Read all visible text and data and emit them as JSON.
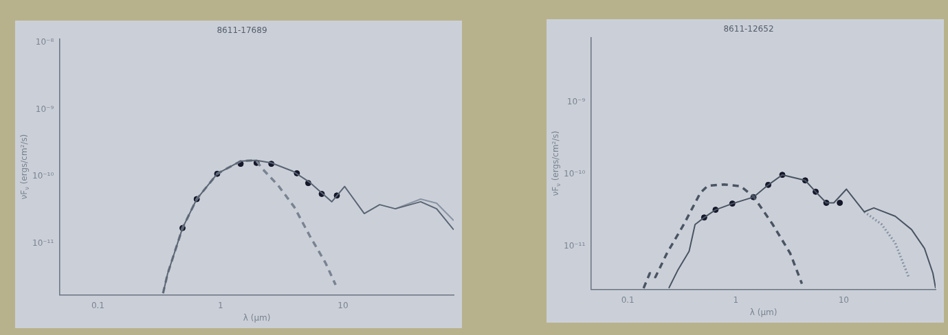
{
  "chart_data": [
    {
      "type": "line",
      "title": "8611-17689",
      "xlabel": "λ (μm)",
      "ylabel": "νF$_{ν}$ (ergs/cm²/s)",
      "log": "xy",
      "grid": false,
      "xlim": [
        0.049,
        80
      ],
      "xticks": [
        0.1,
        1,
        10
      ],
      "ylim": [
        1.7e-12,
        1.15e-08
      ],
      "yticks": [
        {
          "value": 1e-08,
          "label": "10⁻⁸"
        },
        {
          "value": 1e-09,
          "label": "10⁻⁹"
        },
        {
          "value": 1e-10,
          "label": "10⁻¹⁰"
        },
        {
          "value": 1e-11,
          "label": "10⁻¹¹"
        }
      ],
      "series": [
        {
          "type": "line",
          "line_style": "solid",
          "marker": "none",
          "color": "#5a6473",
          "x": [
            0.34,
            0.37,
            0.49,
            0.64,
            0.94,
            1.46,
            1.95,
            2.6,
            3.9,
            5.3,
            8.1,
            10.3,
            14.9,
            19.9,
            26.7,
            43,
            58,
            80
          ],
          "values": [
            1.8e-12,
            3.5e-12,
            1.7e-11,
            4.6e-11,
            1.1e-10,
            1.7e-10,
            1.75e-10,
            1.6e-10,
            1.2e-10,
            8.3e-11,
            4.2e-11,
            7.1e-11,
            2.8e-11,
            3.8e-11,
            3.3e-11,
            4.2e-11,
            3.3e-11,
            1.6e-11
          ]
        },
        {
          "type": "line",
          "line_style": "solid",
          "marker": "none",
          "color": "#8a93a3",
          "x": [
            26.7,
            43,
            58,
            80
          ],
          "values": [
            3.3e-11,
            4.6e-11,
            4e-11,
            2.2e-11
          ]
        },
        {
          "type": "line",
          "line_style": "dashed",
          "marker": "none",
          "color": "#7a8391",
          "x": [
            0.34,
            0.37,
            0.49,
            0.64,
            0.94,
            1.46,
            1.95,
            2.2,
            2.95,
            4.0,
            5.35,
            7.2,
            8.7
          ],
          "values": [
            1.8e-12,
            3.5e-12,
            1.7e-11,
            4.6e-11,
            1.1e-10,
            1.7e-10,
            1.75e-10,
            1.3e-10,
            7.4e-11,
            3.5e-11,
            1.3e-11,
            5.1e-12,
            2.4e-12
          ]
        },
        {
          "type": "scatter",
          "marker": "circle",
          "color": "#15172a",
          "x": [
            0.49,
            0.64,
            0.94,
            1.46,
            1.97,
            2.6,
            4.2,
            5.2,
            6.7,
            8.9
          ],
          "values": [
            1.7e-11,
            4.6e-11,
            1.1e-10,
            1.55e-10,
            1.6e-10,
            1.55e-10,
            1.12e-10,
            8e-11,
            5.5e-11,
            5.2e-11
          ]
        }
      ]
    },
    {
      "type": "line",
      "title": "8611-12652",
      "xlabel": "λ (μm)",
      "ylabel": "νF$_{ν}$ (ergs/cm²/s)",
      "log": "xy",
      "grid": false,
      "xlim": [
        0.046,
        71
      ],
      "xticks": [
        0.1,
        1,
        10
      ],
      "ylim": [
        2.5e-12,
        8e-09
      ],
      "yticks": [
        {
          "value": 1e-09,
          "label": "10⁻⁹"
        },
        {
          "value": 1e-10,
          "label": "10⁻¹⁰"
        },
        {
          "value": 1e-11,
          "label": "10⁻¹¹"
        }
      ],
      "series": [
        {
          "type": "line",
          "line_style": "solid",
          "marker": "none",
          "color": "#4a5462",
          "x": [
            0.24,
            0.29,
            0.37,
            0.42,
            0.51,
            0.65,
            0.93,
            1.46,
            2.0,
            2.7,
            4.4,
            5.5,
            6.9,
            8.1,
            10.6,
            15.5,
            19,
            30,
            42.5,
            56,
            67,
            71
          ],
          "values": [
            2.6e-12,
            4.6e-12,
            8.5e-12,
            2e-11,
            2.5e-11,
            3.2e-11,
            3.9e-11,
            4.8e-11,
            7.1e-11,
            9.8e-11,
            8.2e-11,
            5.7e-11,
            4e-11,
            4e-11,
            6.2e-11,
            3e-11,
            3.4e-11,
            2.6e-11,
            1.7e-11,
            9.3e-12,
            4.2e-12,
            2.6e-12
          ]
        },
        {
          "type": "line",
          "line_style": "dotted",
          "marker": "none",
          "color": "#8a93a3",
          "x": [
            15.5,
            22.5,
            30,
            40
          ],
          "values": [
            3e-11,
            2e-11,
            1.1e-11,
            3.7e-12
          ]
        },
        {
          "type": "line",
          "line_style": "dashed",
          "marker": "none",
          "color": "#4a5462",
          "x": [
            0.14,
            0.16,
            0.18,
            0.23,
            0.33,
            0.47,
            0.55,
            0.78,
            1.11,
            1.46,
            2.2,
            3.2,
            4.1
          ],
          "values": [
            2.6e-12,
            4.2e-12,
            3.7e-12,
            7.9e-12,
            2e-11,
            5.5e-11,
            6.9e-11,
            7.2e-11,
            6.8e-11,
            4.9e-11,
            2e-11,
            7.9e-12,
            3e-12
          ]
        },
        {
          "type": "scatter",
          "marker": "circle",
          "color": "#15172a",
          "x": [
            0.51,
            0.65,
            0.93,
            1.46,
            2.0,
            2.7,
            4.4,
            5.5,
            6.9,
            9.2
          ],
          "values": [
            2.5e-11,
            3.2e-11,
            3.9e-11,
            4.8e-11,
            7.1e-11,
            9.8e-11,
            8.2e-11,
            5.7e-11,
            4e-11,
            4e-11
          ]
        }
      ]
    }
  ]
}
